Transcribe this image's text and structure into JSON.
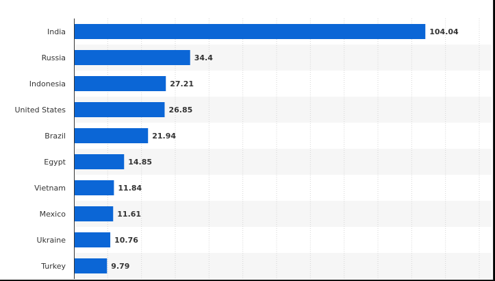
{
  "colors": {
    "bar": "#0b66d6",
    "band": "#f6f6f6",
    "grid": "#d4d4d4",
    "axis": "#333333",
    "text": "#333333"
  },
  "chart_data": {
    "type": "bar",
    "orientation": "horizontal",
    "title": "",
    "xlabel": "",
    "ylabel": "",
    "categories": [
      "India",
      "Russia",
      "Indonesia",
      "United States",
      "Brazil",
      "Egypt",
      "Vietnam",
      "Mexico",
      "Ukraine",
      "Turkey"
    ],
    "values": [
      104.04,
      34.4,
      27.21,
      26.85,
      21.94,
      14.85,
      11.84,
      11.61,
      10.76,
      9.79
    ],
    "value_labels": [
      "104.04",
      "34.4",
      "27.21",
      "26.85",
      "21.94",
      "14.85",
      "11.84",
      "11.61",
      "10.76",
      "9.79"
    ],
    "xlim": [
      0,
      120
    ],
    "grid": true,
    "legend": "none"
  }
}
